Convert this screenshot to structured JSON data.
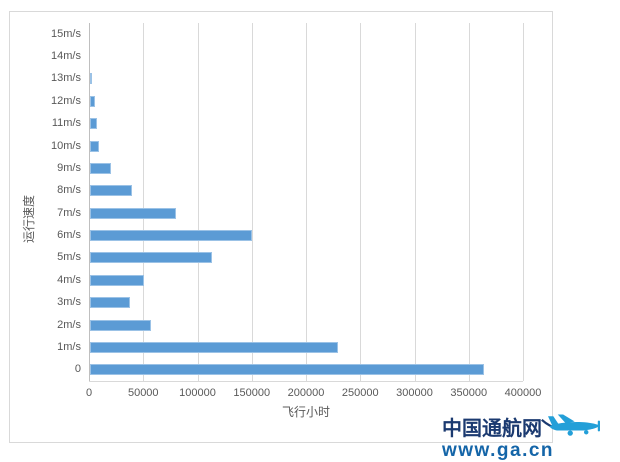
{
  "chart_data": {
    "type": "bar",
    "orientation": "horizontal",
    "title": "",
    "xlabel": "飞行小时",
    "ylabel": "运行速度",
    "categories": [
      "15m/s",
      "14m/s",
      "13m/s",
      "12m/s",
      "11m/s",
      "10m/s",
      "9m/s",
      "8m/s",
      "7m/s",
      "6m/s",
      "5m/s",
      "4m/s",
      "3m/s",
      "2m/s",
      "1m/s",
      "0"
    ],
    "values": [
      0,
      0,
      2000,
      5000,
      6000,
      8000,
      19000,
      39000,
      79000,
      149000,
      112000,
      50000,
      37000,
      56000,
      229000,
      363000
    ],
    "xlim": [
      0,
      400000
    ],
    "xticks": [
      0,
      50000,
      100000,
      150000,
      200000,
      250000,
      300000,
      350000,
      400000
    ],
    "xtick_labels": [
      "0",
      "50000",
      "100000",
      "150000",
      "200000",
      "250000",
      "300000",
      "350000",
      "400000"
    ],
    "grid": "vertical",
    "legend": false,
    "bar_color": "#5b9bd5"
  },
  "watermark": {
    "site_name": "中国通航网",
    "url": "www.ga.cn",
    "logo_icon": "airplane-icon"
  },
  "colors": {
    "bar_fill": "#5b9bd5",
    "bar_edge": "#9bc2e6",
    "gridline": "#d9d9d9",
    "axis_text": "#595959",
    "frame_border": "#d9d9d9",
    "logo_navy": "#1b3a70",
    "logo_blue": "#1465a8",
    "plane_blue": "#239fd8"
  }
}
